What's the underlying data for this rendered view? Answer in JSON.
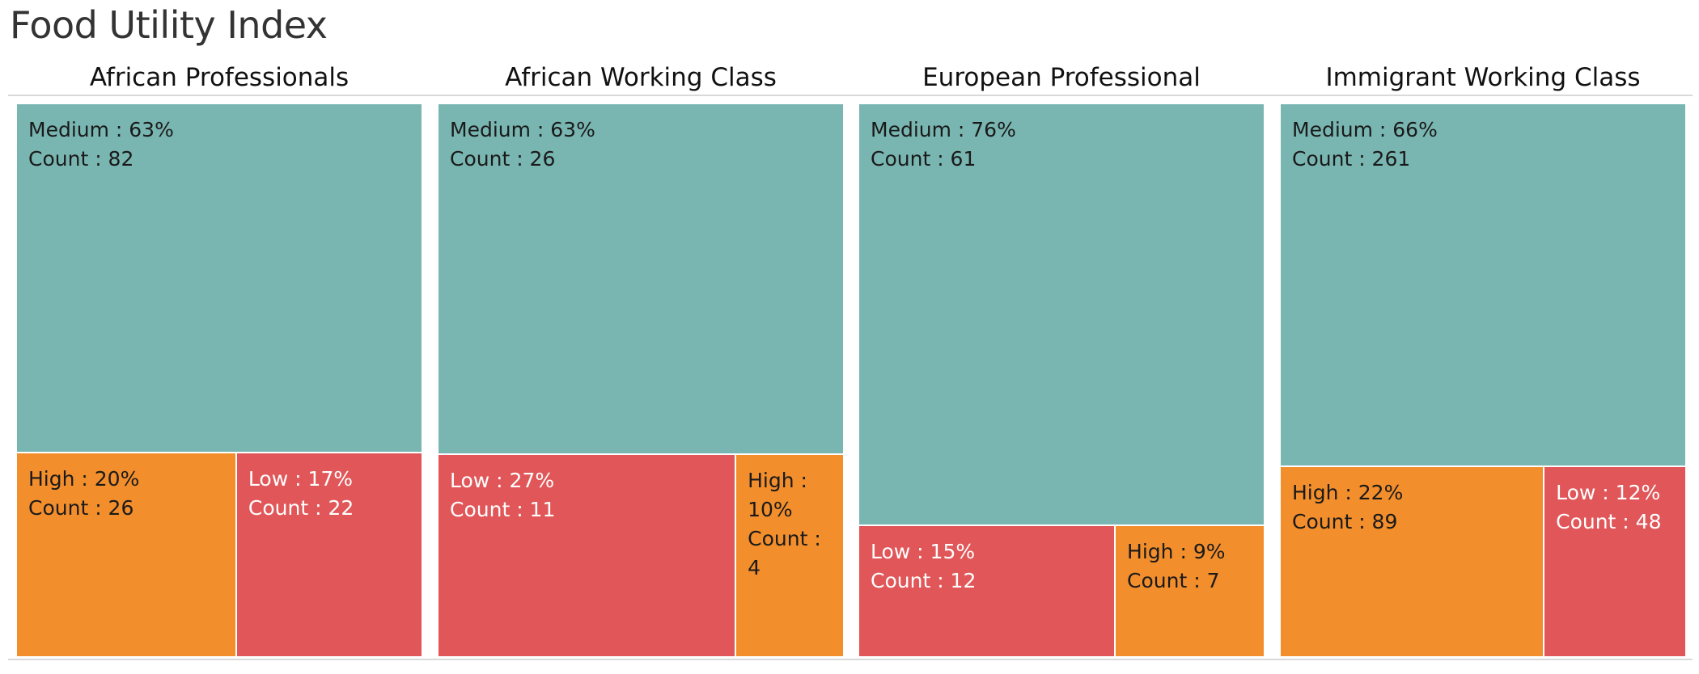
{
  "title": "Food Utility Index",
  "colors": {
    "Medium": "#79b6b1",
    "High": "#f28e2c",
    "Low": "#e15759",
    "label_dark": "#1a1a1a",
    "label_light": "#ffffff"
  },
  "chart_data": {
    "type": "treemap",
    "measure": "Count",
    "panels": [
      {
        "name": "African Professionals",
        "cells": [
          {
            "category": "Medium",
            "percent": 63,
            "count": 82,
            "label": "Medium : 63%\nCount : 82"
          },
          {
            "category": "High",
            "percent": 20,
            "count": 26,
            "label": "High : 20%\nCount : 26"
          },
          {
            "category": "Low",
            "percent": 17,
            "count": 22,
            "label": "Low : 17%\nCount : 22"
          }
        ]
      },
      {
        "name": "African Working Class",
        "cells": [
          {
            "category": "Medium",
            "percent": 63,
            "count": 26,
            "label": "Medium : 63%\nCount : 26"
          },
          {
            "category": "Low",
            "percent": 27,
            "count": 11,
            "label": "Low : 27%\nCount : 11"
          },
          {
            "category": "High",
            "percent": 10,
            "count": 4,
            "label": "High :\n10%\nCount :\n4"
          }
        ]
      },
      {
        "name": "European Professional",
        "cells": [
          {
            "category": "Medium",
            "percent": 76,
            "count": 61,
            "label": "Medium : 76%\nCount : 61"
          },
          {
            "category": "Low",
            "percent": 15,
            "count": 12,
            "label": "Low : 15%\nCount : 12"
          },
          {
            "category": "High",
            "percent": 9,
            "count": 7,
            "label": "High : 9%\nCount : 7"
          }
        ]
      },
      {
        "name": "Immigrant Working Class",
        "cells": [
          {
            "category": "Medium",
            "percent": 66,
            "count": 261,
            "label": "Medium : 66%\nCount : 261"
          },
          {
            "category": "High",
            "percent": 22,
            "count": 89,
            "label": "High : 22%\nCount : 89"
          },
          {
            "category": "Low",
            "percent": 12,
            "count": 48,
            "label": "Low : 12%\nCount : 48"
          }
        ]
      }
    ]
  }
}
